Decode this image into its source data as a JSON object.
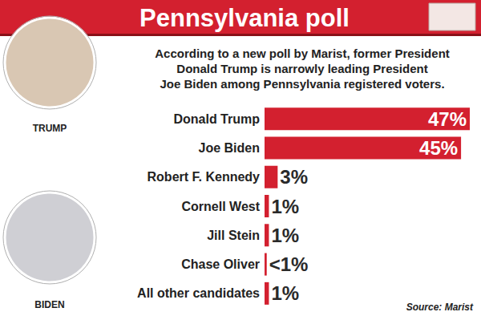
{
  "chart_data": {
    "type": "bar",
    "title": "Pennsylvania poll",
    "subtitle": "According to a new poll by Marist, former President\nDonald Trump is narrowly leading President\nJoe Biden among Pennsylvania registered voters.",
    "categories": [
      "Donald Trump",
      "Joe Biden",
      "Robert F. Kennedy",
      "Cornell West",
      "Jill Stein",
      "Chase Oliver",
      "All other candidates"
    ],
    "values": [
      47,
      45,
      3,
      1,
      1,
      0.5,
      1
    ],
    "value_labels": [
      "47%",
      "45%",
      "3%",
      "1%",
      "1%",
      "<1%",
      "1%"
    ],
    "color": "#d3202f",
    "xlim": [
      0,
      47
    ],
    "orientation": "horizontal",
    "data_labels": true,
    "tick_labels": "y",
    "grid": false,
    "annotations": [
      "TRUMP",
      "BIDEN",
      "Source: Marist"
    ]
  }
}
